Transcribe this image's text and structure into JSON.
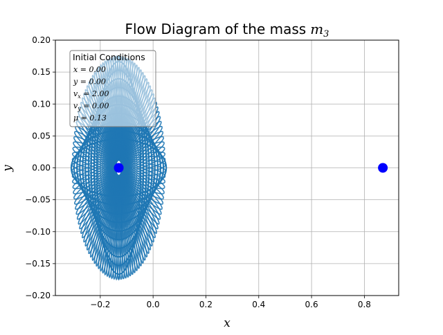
{
  "chart_data": {
    "type": "line",
    "title": "Flow Diagram of the mass",
    "title_math": "m",
    "title_math_sub": "3",
    "xlabel": "x",
    "ylabel": "y",
    "xlim": [
      -0.37,
      0.93
    ],
    "ylim": [
      -0.2,
      0.2
    ],
    "x_ticks": [
      -0.2,
      0.0,
      0.2,
      0.4,
      0.6,
      0.8
    ],
    "x_tick_labels": [
      "−0.2",
      "0.0",
      "0.2",
      "0.4",
      "0.6",
      "0.8"
    ],
    "y_ticks": [
      -0.2,
      -0.15,
      -0.1,
      -0.05,
      0.0,
      0.05,
      0.1,
      0.15,
      0.2
    ],
    "y_tick_labels": [
      "−0.20",
      "−0.15",
      "−0.10",
      "−0.05",
      "0.00",
      "0.05",
      "0.10",
      "0.15",
      "0.20"
    ],
    "grid": true,
    "line_color": "#1f77b4",
    "marker_color": "#0000ff",
    "legend": {
      "placement": "top-left",
      "title": "Initial Conditions",
      "entries": [
        {
          "var": "x",
          "sub": "",
          "value": "0.00"
        },
        {
          "var": "y",
          "sub": "",
          "value": "0.00"
        },
        {
          "var": "v",
          "sub": "x",
          "value": "2.00"
        },
        {
          "var": "v",
          "sub": "y",
          "value": "0.00"
        },
        {
          "var": "μ",
          "sub": "",
          "value": "0.13"
        }
      ]
    },
    "orbit": {
      "center_x": -0.13,
      "center_y": 0.0,
      "x_min": -0.31,
      "x_max": 0.05,
      "y_min": -0.18,
      "y_max": 0.18
    },
    "points": [
      {
        "x": -0.13,
        "y": 0.0
      },
      {
        "x": 0.87,
        "y": 0.0
      }
    ]
  }
}
